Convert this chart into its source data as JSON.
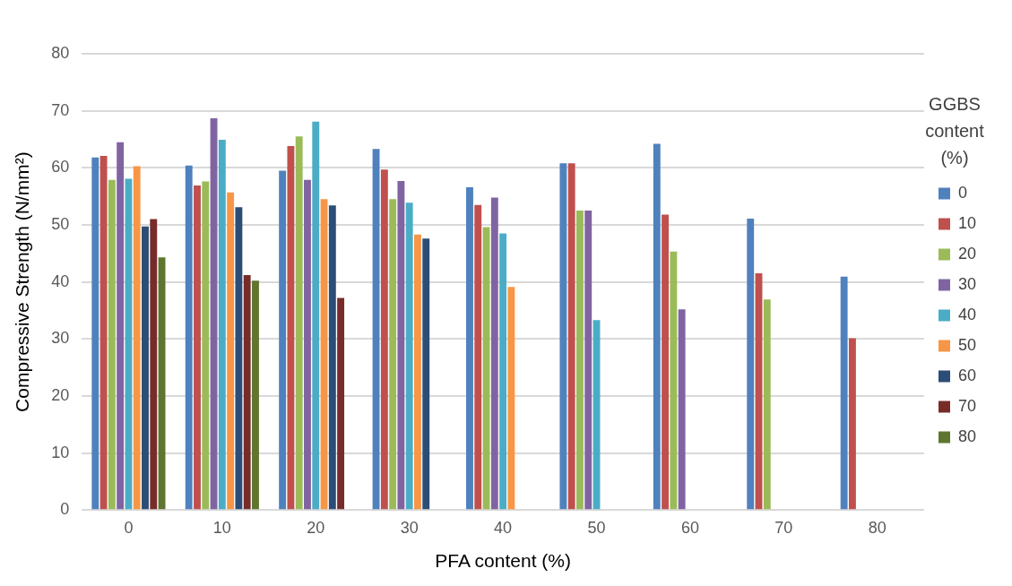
{
  "chart_data": {
    "type": "bar",
    "xlabel": "PFA content (%)",
    "ylabel": "Compressive Strength (N/mm²)",
    "legend_title": "GGBS content (%)",
    "categories": [
      "0",
      "10",
      "20",
      "30",
      "40",
      "50",
      "60",
      "70",
      "80"
    ],
    "series": [
      {
        "name": "0",
        "color": "#4f81bd",
        "values": [
          61.8,
          60.4,
          59.5,
          63.3,
          56.6,
          60.8,
          64.2,
          51.1,
          40.9
        ]
      },
      {
        "name": "10",
        "color": "#c0504d",
        "values": [
          62.1,
          56.9,
          63.8,
          59.7,
          53.5,
          60.8,
          51.8,
          41.5,
          30.1
        ]
      },
      {
        "name": "20",
        "color": "#9bbb59",
        "values": [
          57.9,
          57.6,
          65.5,
          54.5,
          49.6,
          52.5,
          45.3,
          36.9,
          null
        ]
      },
      {
        "name": "30",
        "color": "#8064a2",
        "values": [
          64.5,
          68.7,
          57.9,
          57.7,
          54.8,
          52.5,
          35.2,
          null,
          null
        ]
      },
      {
        "name": "40",
        "color": "#4bacc6",
        "values": [
          58.1,
          64.9,
          68.1,
          53.9,
          48.5,
          33.3,
          null,
          null,
          null
        ]
      },
      {
        "name": "50",
        "color": "#f79646",
        "values": [
          60.3,
          55.7,
          54.5,
          48.3,
          39.1,
          null,
          null,
          null,
          null
        ]
      },
      {
        "name": "60",
        "color": "#2c4d75",
        "values": [
          49.7,
          53.1,
          53.4,
          47.6,
          null,
          null,
          null,
          null,
          null
        ]
      },
      {
        "name": "70",
        "color": "#772c2a",
        "values": [
          51.0,
          41.2,
          37.2,
          null,
          null,
          null,
          null,
          null,
          null
        ]
      },
      {
        "name": "80",
        "color": "#5f7530",
        "values": [
          44.3,
          40.2,
          null,
          null,
          null,
          null,
          null,
          null,
          null
        ]
      }
    ],
    "ylim": [
      0,
      80
    ],
    "yticks": [
      0,
      10,
      20,
      30,
      40,
      50,
      60,
      70,
      80
    ],
    "grid": "y",
    "legend": "right"
  }
}
